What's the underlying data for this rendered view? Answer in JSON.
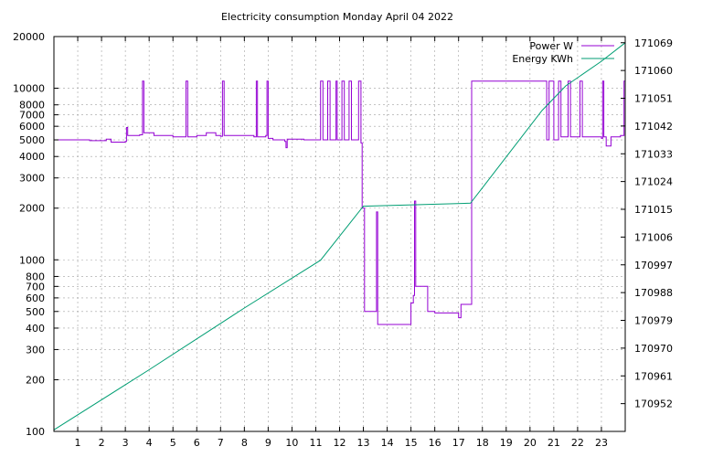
{
  "chart_data": {
    "type": "line",
    "title": "Electricity consumption Monday April 04 2022",
    "legend_position": "top-right",
    "grid": true,
    "x": {
      "ticks": [
        1,
        2,
        3,
        4,
        5,
        6,
        7,
        8,
        9,
        10,
        11,
        12,
        13,
        14,
        15,
        16,
        17,
        18,
        19,
        20,
        21,
        22,
        23
      ],
      "range": [
        0,
        24
      ]
    },
    "y_left": {
      "scale": "log",
      "range": [
        100,
        20000
      ],
      "ticks": [
        100,
        200,
        300,
        400,
        500,
        600,
        700,
        800,
        1000,
        2000,
        3000,
        4000,
        5000,
        6000,
        7000,
        8000,
        10000,
        20000
      ],
      "tick_labels": [
        "100",
        "200",
        "300",
        "400",
        "500",
        "600",
        "700",
        "800",
        "1000",
        "2000",
        "3000",
        "4000",
        "5000",
        "6000",
        "7000",
        "8000",
        "10000",
        "20000"
      ]
    },
    "y_right": {
      "scale": "linear",
      "range": [
        170943,
        171071
      ],
      "ticks": [
        170952,
        170961,
        170970,
        170979,
        170988,
        170997,
        171006,
        171015,
        171024,
        171033,
        171042,
        171051,
        171060,
        171069
      ]
    },
    "series": [
      {
        "name": "Power W",
        "axis": "left",
        "color": "#9400d3",
        "points": [
          [
            0,
            5000
          ],
          [
            1,
            5000
          ],
          [
            1.5,
            4950
          ],
          [
            2,
            4950
          ],
          [
            2.2,
            5050
          ],
          [
            2.4,
            4850
          ],
          [
            3,
            4900
          ],
          [
            3.05,
            5900
          ],
          [
            3.1,
            5300
          ],
          [
            3.6,
            5350
          ],
          [
            3.72,
            11000
          ],
          [
            3.78,
            5500
          ],
          [
            4.2,
            5300
          ],
          [
            5,
            5200
          ],
          [
            5.5,
            5200
          ],
          [
            5.55,
            11000
          ],
          [
            5.62,
            5200
          ],
          [
            6,
            5300
          ],
          [
            6.4,
            5500
          ],
          [
            6.8,
            5300
          ],
          [
            7.0,
            5250
          ],
          [
            7.08,
            11000
          ],
          [
            7.15,
            5300
          ],
          [
            7.8,
            5300
          ],
          [
            8.4,
            5200
          ],
          [
            8.5,
            11000
          ],
          [
            8.55,
            5200
          ],
          [
            8.9,
            5300
          ],
          [
            8.95,
            11000
          ],
          [
            9.0,
            5100
          ],
          [
            9.2,
            5000
          ],
          [
            9.7,
            4900
          ],
          [
            9.75,
            4500
          ],
          [
            9.8,
            5050
          ],
          [
            10.5,
            5000
          ],
          [
            11.1,
            5000
          ],
          [
            11.2,
            11000
          ],
          [
            11.3,
            5000
          ],
          [
            11.5,
            11000
          ],
          [
            11.6,
            5000
          ],
          [
            11.85,
            11000
          ],
          [
            11.9,
            5000
          ],
          [
            12.1,
            11000
          ],
          [
            12.2,
            5000
          ],
          [
            12.4,
            11000
          ],
          [
            12.5,
            5000
          ],
          [
            12.8,
            11000
          ],
          [
            12.9,
            4800
          ],
          [
            12.95,
            2000
          ],
          [
            13.05,
            500
          ],
          [
            13.5,
            500
          ],
          [
            13.55,
            1900
          ],
          [
            13.6,
            420
          ],
          [
            14,
            420
          ],
          [
            14.5,
            420
          ],
          [
            14.9,
            420
          ],
          [
            15.0,
            560
          ],
          [
            15.1,
            620
          ],
          [
            15.15,
            2200
          ],
          [
            15.2,
            700
          ],
          [
            15.6,
            700
          ],
          [
            15.7,
            500
          ],
          [
            16,
            490
          ],
          [
            16.5,
            490
          ],
          [
            16.9,
            490
          ],
          [
            17.0,
            460
          ],
          [
            17.1,
            550
          ],
          [
            17.5,
            550
          ],
          [
            17.55,
            11000
          ],
          [
            18,
            11000
          ],
          [
            19,
            11000
          ],
          [
            20,
            11000
          ],
          [
            20.5,
            11000
          ],
          [
            20.7,
            5000
          ],
          [
            20.8,
            11000
          ],
          [
            21.0,
            5000
          ],
          [
            21.2,
            11000
          ],
          [
            21.3,
            5200
          ],
          [
            21.6,
            11000
          ],
          [
            21.7,
            5200
          ],
          [
            22.1,
            11000
          ],
          [
            22.2,
            5200
          ],
          [
            22.5,
            5200
          ],
          [
            23.0,
            5100
          ],
          [
            23.05,
            11000
          ],
          [
            23.1,
            5200
          ],
          [
            23.2,
            4600
          ],
          [
            23.4,
            5200
          ],
          [
            23.8,
            5300
          ],
          [
            23.95,
            11000
          ],
          [
            24,
            5300
          ]
        ]
      },
      {
        "name": "Energy KWh",
        "axis": "right",
        "color": "#009e73",
        "points": [
          [
            0,
            170943.5
          ],
          [
            4,
            170963
          ],
          [
            8,
            170983
          ],
          [
            11.2,
            170998.5
          ],
          [
            13,
            171016
          ],
          [
            17.5,
            171017
          ],
          [
            18,
            171022
          ],
          [
            20.5,
            171047
          ],
          [
            21.5,
            171055
          ],
          [
            23,
            171063
          ],
          [
            24,
            171069
          ]
        ]
      }
    ]
  }
}
